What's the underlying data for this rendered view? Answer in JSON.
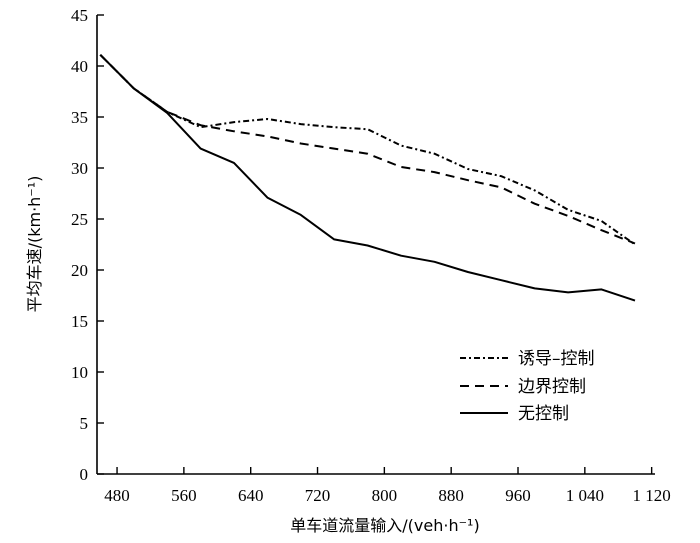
{
  "chart_data": {
    "type": "line",
    "title": "",
    "xlabel": "单车道流量输入/(veh·h⁻¹)",
    "ylabel": "平均车速/(km·h⁻¹)",
    "xlim": [
      456,
      1124
    ],
    "ylim": [
      0,
      45
    ],
    "xticks": [
      480,
      560,
      640,
      720,
      800,
      880,
      960,
      1040,
      1120
    ],
    "xtick_labels": [
      "480",
      "560",
      "640",
      "720",
      "800",
      "880",
      "960",
      "1 040",
      "1 120"
    ],
    "yticks": [
      0,
      5,
      10,
      15,
      20,
      25,
      30,
      35,
      40,
      45
    ],
    "ytick_labels": [
      "0",
      "5",
      "10",
      "15",
      "20",
      "25",
      "30",
      "35",
      "40",
      "45"
    ],
    "grid": false,
    "legend": "center-right",
    "series": [
      {
        "name": "诱导–控制",
        "style": "dashdot",
        "x": [
          460,
          500,
          540,
          580,
          620,
          660,
          700,
          740,
          780,
          820,
          860,
          900,
          940,
          980,
          1020,
          1060,
          1100
        ],
        "y": [
          41.1,
          37.8,
          35.5,
          34.0,
          34.5,
          34.8,
          34.3,
          34.0,
          33.8,
          32.2,
          31.4,
          29.9,
          29.2,
          27.8,
          25.9,
          24.8,
          22.5
        ]
      },
      {
        "name": "边界控制",
        "style": "dashed",
        "x": [
          460,
          500,
          540,
          580,
          620,
          660,
          700,
          740,
          780,
          820,
          860,
          900,
          940,
          980,
          1020,
          1060,
          1100
        ],
        "y": [
          41.1,
          37.8,
          35.5,
          34.2,
          33.6,
          33.1,
          32.4,
          31.9,
          31.4,
          30.1,
          29.6,
          28.8,
          28.1,
          26.5,
          25.3,
          23.9,
          22.6
        ]
      },
      {
        "name": "无控制",
        "style": "solid",
        "x": [
          460,
          500,
          540,
          580,
          620,
          660,
          700,
          740,
          780,
          820,
          860,
          900,
          940,
          980,
          1020,
          1060,
          1100
        ],
        "y": [
          41.1,
          37.8,
          35.4,
          31.9,
          30.5,
          27.1,
          25.4,
          23.0,
          22.4,
          21.4,
          20.8,
          19.8,
          19.0,
          18.2,
          17.8,
          18.1,
          17.0
        ]
      }
    ]
  }
}
